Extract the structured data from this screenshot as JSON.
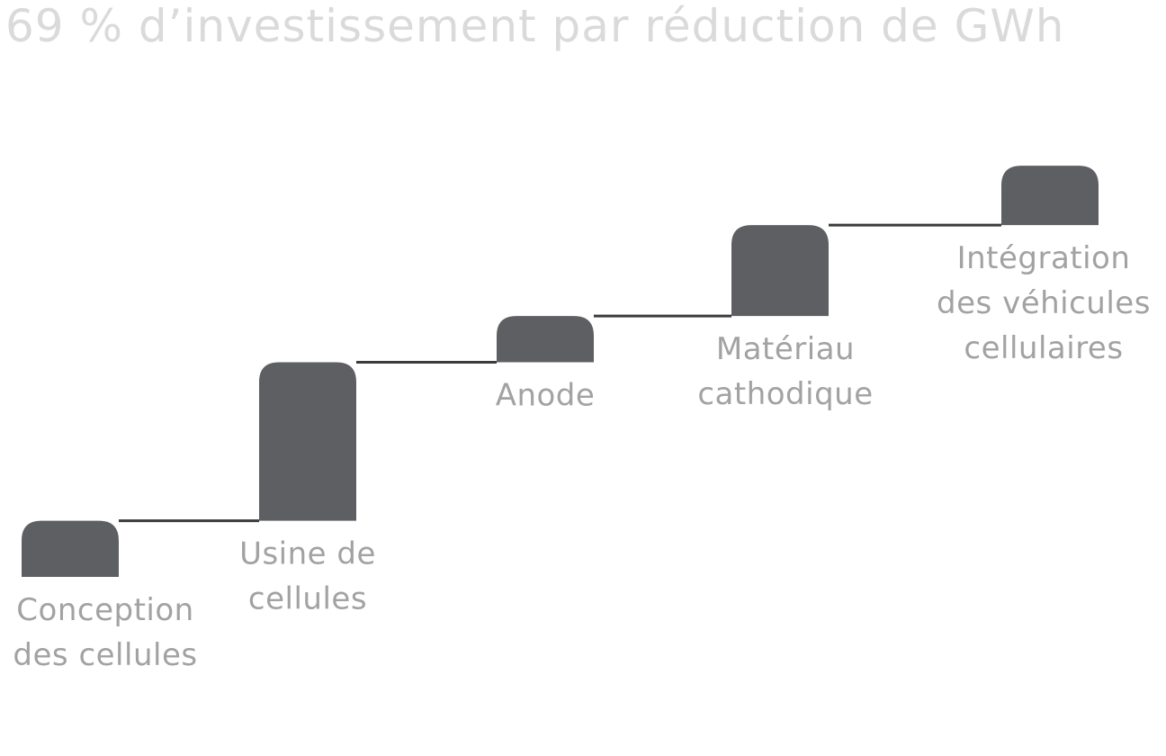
{
  "title": "69 % d’investissement par réduction de GWh",
  "colors": {
    "bar": "#5e5f63",
    "connector": "#3a3b3e",
    "label": "#a2a2a4",
    "title": "#dadada"
  },
  "chart_data": {
    "type": "bar",
    "subtype": "waterfall",
    "title": "69 % d’investissement par réduction de GWh",
    "categories": [
      [
        "Conception",
        "des cellules"
      ],
      [
        "Usine de",
        "cellules"
      ],
      [
        "Anode"
      ],
      [
        "Matériau",
        "cathodique"
      ],
      [
        "Intégration",
        "des véhicules",
        "cellulaires"
      ]
    ],
    "values": [
      17,
      48,
      14,
      27.5,
      18
    ],
    "total": 124.5,
    "grid": false,
    "legend": "none",
    "axis_labels": false
  }
}
